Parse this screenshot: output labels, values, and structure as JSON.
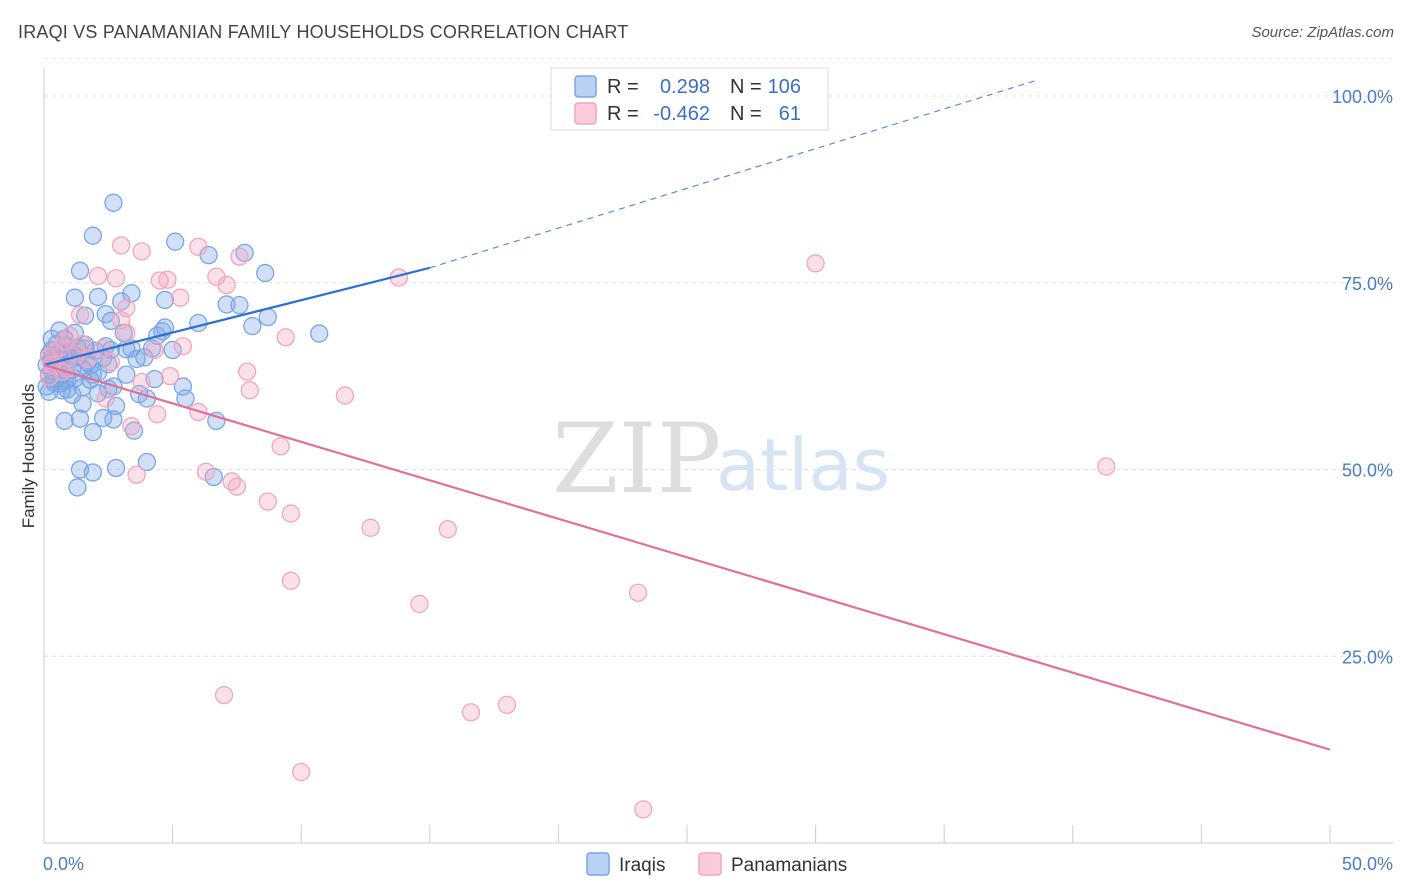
{
  "title": "IRAQI VS PANAMANIAN FAMILY HOUSEHOLDS CORRELATION CHART",
  "source": "Source: ZipAtlas.com",
  "watermark": {
    "zip": "ZIP",
    "atlas": "atlas"
  },
  "chart_data": {
    "type": "scatter",
    "xlabel": "",
    "ylabel": "Family Households",
    "xlim": [
      0,
      50
    ],
    "ylim": [
      0,
      105
    ],
    "x_ticks_labels": {
      "left": "0.0%",
      "right": "50.0%"
    },
    "y_ticks": [
      {
        "value": 100,
        "label": "100.0%"
      },
      {
        "value": 75,
        "label": "75.0%"
      },
      {
        "value": 50,
        "label": "50.0%"
      },
      {
        "value": 25,
        "label": "25.0%"
      }
    ],
    "colors": {
      "iraqis": "#7aa6e6",
      "panamanians": "#f0a6c0",
      "iraqis_line": "#2f6fd0",
      "panamanians_line": "#e0709a"
    },
    "legend": {
      "r_label": "R =",
      "n_label": "N =",
      "iraqis": {
        "r": "0.298",
        "n": "106"
      },
      "panamanians": {
        "r": "-0.462",
        "n": "61"
      }
    },
    "series": [
      {
        "name": "Iraqis",
        "trend": {
          "x0": 0,
          "y0": 64.0,
          "x1": 15,
          "y1": 77.0,
          "x_dash_end": 38.5,
          "y_dash_end": 102.0
        },
        "points": [
          [
            2.7,
            85.7
          ],
          [
            1.9,
            81.3
          ],
          [
            5.1,
            80.5
          ],
          [
            6.4,
            78.7
          ],
          [
            7.8,
            79.0
          ],
          [
            1.4,
            76.6
          ],
          [
            8.6,
            76.3
          ],
          [
            1.2,
            73.0
          ],
          [
            2.1,
            73.1
          ],
          [
            3.4,
            73.6
          ],
          [
            3.0,
            72.5
          ],
          [
            4.7,
            72.7
          ],
          [
            7.1,
            72.1
          ],
          [
            7.6,
            72.0
          ],
          [
            8.7,
            70.4
          ],
          [
            1.6,
            70.6
          ],
          [
            2.4,
            70.8
          ],
          [
            2.6,
            69.9
          ],
          [
            6.0,
            69.6
          ],
          [
            8.1,
            69.2
          ],
          [
            4.7,
            69.0
          ],
          [
            4.6,
            68.5
          ],
          [
            0.6,
            68.6
          ],
          [
            0.3,
            67.5
          ],
          [
            1.2,
            68.3
          ],
          [
            3.1,
            68.3
          ],
          [
            4.4,
            67.9
          ],
          [
            10.7,
            68.2
          ],
          [
            0.5,
            66.8
          ],
          [
            0.9,
            66.5
          ],
          [
            1.6,
            66.2
          ],
          [
            2.6,
            66.0
          ],
          [
            3.2,
            66.1
          ],
          [
            4.2,
            66.2
          ],
          [
            5.0,
            66.0
          ],
          [
            0.2,
            65.4
          ],
          [
            0.8,
            65.2
          ],
          [
            1.3,
            65.0
          ],
          [
            2.3,
            64.9
          ],
          [
            3.6,
            64.8
          ],
          [
            0.1,
            64.0
          ],
          [
            0.5,
            64.3
          ],
          [
            0.9,
            63.8
          ],
          [
            1.8,
            63.9
          ],
          [
            2.5,
            64.1
          ],
          [
            0.3,
            63.2
          ],
          [
            1.1,
            63.4
          ],
          [
            1.9,
            62.7
          ],
          [
            0.4,
            62.0
          ],
          [
            1.2,
            62.2
          ],
          [
            3.2,
            62.7
          ],
          [
            4.3,
            62.1
          ],
          [
            0.1,
            61.1
          ],
          [
            0.6,
            61.5
          ],
          [
            0.9,
            60.7
          ],
          [
            1.5,
            61.0
          ],
          [
            2.7,
            61.1
          ],
          [
            5.4,
            61.1
          ],
          [
            0.2,
            60.4
          ],
          [
            1.1,
            60.0
          ],
          [
            2.1,
            60.2
          ],
          [
            3.7,
            60.1
          ],
          [
            4.0,
            59.5
          ],
          [
            5.5,
            59.5
          ],
          [
            1.5,
            58.8
          ],
          [
            2.8,
            58.5
          ],
          [
            0.8,
            56.5
          ],
          [
            1.4,
            56.8
          ],
          [
            2.3,
            56.9
          ],
          [
            2.7,
            56.7
          ],
          [
            1.9,
            55.0
          ],
          [
            3.5,
            55.2
          ],
          [
            6.7,
            56.5
          ],
          [
            4.0,
            51.0
          ],
          [
            1.4,
            50.0
          ],
          [
            1.9,
            49.6
          ],
          [
            2.8,
            50.2
          ],
          [
            6.6,
            49.0
          ],
          [
            1.3,
            47.6
          ],
          [
            0.4,
            64.6
          ],
          [
            0.7,
            62.6
          ],
          [
            1.7,
            64.3
          ],
          [
            2.4,
            66.5
          ],
          [
            3.4,
            66.2
          ],
          [
            0.9,
            65.7
          ],
          [
            1.6,
            66.7
          ],
          [
            0.5,
            63.6
          ],
          [
            0.2,
            62.7
          ],
          [
            0.8,
            61.8
          ],
          [
            1.0,
            64.7
          ],
          [
            3.9,
            65.0
          ],
          [
            2.0,
            65.9
          ],
          [
            1.3,
            66.3
          ],
          [
            0.6,
            65.5
          ],
          [
            0.3,
            66.0
          ],
          [
            0.9,
            62.0
          ],
          [
            1.8,
            62.0
          ],
          [
            0.7,
            60.6
          ],
          [
            0.4,
            61.6
          ],
          [
            2.1,
            63.0
          ],
          [
            1.5,
            63.5
          ],
          [
            0.8,
            67.5
          ],
          [
            1.1,
            65.4
          ],
          [
            0.3,
            64.9
          ],
          [
            0.6,
            63.9
          ],
          [
            2.5,
            60.8
          ]
        ]
      },
      {
        "name": "Panamanians",
        "trend": {
          "x0": 0,
          "y0": 64.0,
          "x1": 50,
          "y1": 12.5
        },
        "points": [
          [
            3.0,
            80.0
          ],
          [
            6.0,
            79.8
          ],
          [
            3.8,
            79.2
          ],
          [
            7.6,
            78.5
          ],
          [
            30.0,
            77.6
          ],
          [
            2.1,
            75.9
          ],
          [
            2.8,
            75.6
          ],
          [
            4.5,
            75.3
          ],
          [
            4.8,
            75.4
          ],
          [
            6.7,
            75.8
          ],
          [
            7.1,
            74.7
          ],
          [
            13.8,
            75.7
          ],
          [
            5.3,
            73.0
          ],
          [
            3.2,
            71.6
          ],
          [
            1.4,
            70.7
          ],
          [
            3.0,
            70.0
          ],
          [
            3.2,
            68.3
          ],
          [
            9.4,
            67.7
          ],
          [
            0.8,
            67.2
          ],
          [
            1.5,
            66.8
          ],
          [
            5.4,
            66.5
          ],
          [
            4.3,
            66.0
          ],
          [
            0.6,
            66.3
          ],
          [
            1.3,
            65.5
          ],
          [
            0.2,
            65.0
          ],
          [
            2.6,
            64.4
          ],
          [
            0.3,
            64.0
          ],
          [
            0.9,
            63.5
          ],
          [
            7.9,
            63.1
          ],
          [
            3.8,
            61.7
          ],
          [
            8.0,
            60.6
          ],
          [
            11.7,
            59.9
          ],
          [
            2.4,
            59.5
          ],
          [
            6.0,
            57.7
          ],
          [
            4.4,
            57.4
          ],
          [
            3.4,
            55.8
          ],
          [
            9.2,
            53.1
          ],
          [
            41.3,
            50.4
          ],
          [
            3.6,
            49.3
          ],
          [
            6.3,
            49.7
          ],
          [
            7.3,
            48.4
          ],
          [
            7.5,
            47.7
          ],
          [
            8.7,
            45.7
          ],
          [
            9.6,
            44.1
          ],
          [
            12.7,
            42.2
          ],
          [
            15.7,
            42.0
          ],
          [
            9.6,
            35.1
          ],
          [
            14.6,
            32.0
          ],
          [
            23.1,
            33.5
          ],
          [
            7.0,
            19.8
          ],
          [
            16.6,
            17.5
          ],
          [
            18.0,
            18.5
          ],
          [
            10.0,
            9.5
          ],
          [
            23.3,
            4.5
          ],
          [
            0.4,
            65.7
          ],
          [
            1.7,
            64.8
          ],
          [
            0.7,
            63.1
          ],
          [
            2.3,
            66.2
          ],
          [
            1.0,
            67.9
          ],
          [
            4.9,
            62.5
          ],
          [
            0.2,
            62.4
          ]
        ]
      }
    ]
  },
  "bottom_legend": {
    "iraqis": "Iraqis",
    "panamanians": "Panamanians"
  }
}
